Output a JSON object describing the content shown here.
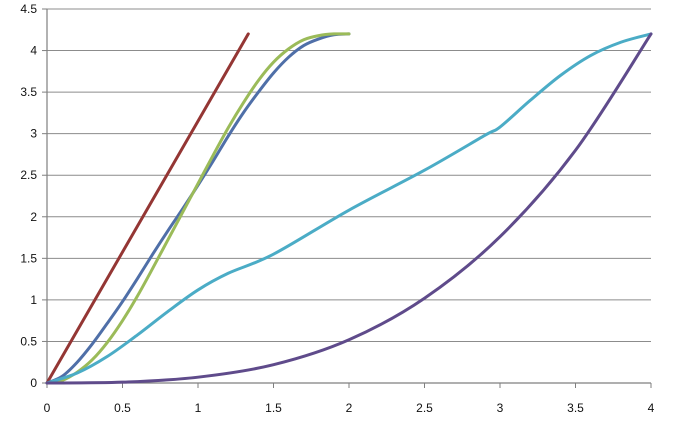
{
  "chart_data": {
    "type": "line",
    "title": "",
    "xlabel": "",
    "ylabel": "",
    "xlim": [
      0,
      4
    ],
    "ylim": [
      0,
      4.5
    ],
    "x_ticks": [
      0,
      0.5,
      1,
      1.5,
      2,
      2.5,
      3,
      3.5,
      4
    ],
    "y_ticks": [
      0,
      0.5,
      1,
      1.5,
      2,
      2.5,
      3,
      3.5,
      4,
      4.5
    ],
    "x_tick_labels": [
      "0",
      "0.5",
      "1",
      "1.5",
      "2",
      "2.5",
      "3",
      "3.5",
      "4"
    ],
    "y_tick_labels": [
      "0",
      "0.5",
      "1",
      "1.5",
      "2",
      "2.5",
      "3",
      "3.5",
      "4",
      "4.5"
    ],
    "grid": {
      "horizontal": true,
      "vertical": false
    },
    "legend": "none",
    "series": [
      {
        "color": "#943634",
        "points": [
          [
            0,
            0
          ],
          [
            1.333,
            4.2
          ]
        ]
      },
      {
        "color": "#4f6fa8",
        "points": [
          [
            0,
            0
          ],
          [
            0.1,
            0.08
          ],
          [
            0.2,
            0.25
          ],
          [
            0.3,
            0.47
          ],
          [
            0.4,
            0.72
          ],
          [
            0.5,
            0.98
          ],
          [
            0.6,
            1.26
          ],
          [
            0.7,
            1.55
          ],
          [
            0.8,
            1.83
          ],
          [
            0.9,
            2.1
          ],
          [
            1.0,
            2.38
          ],
          [
            1.1,
            2.67
          ],
          [
            1.2,
            2.97
          ],
          [
            1.3,
            3.25
          ],
          [
            1.4,
            3.5
          ],
          [
            1.5,
            3.73
          ],
          [
            1.6,
            3.92
          ],
          [
            1.7,
            4.06
          ],
          [
            1.8,
            4.14
          ],
          [
            1.9,
            4.19
          ],
          [
            2.0,
            4.2
          ]
        ]
      },
      {
        "color": "#9bbb59",
        "points": [
          [
            0,
            0
          ],
          [
            0.1,
            0.03
          ],
          [
            0.2,
            0.13
          ],
          [
            0.3,
            0.28
          ],
          [
            0.4,
            0.49
          ],
          [
            0.5,
            0.75
          ],
          [
            0.6,
            1.05
          ],
          [
            0.7,
            1.38
          ],
          [
            0.8,
            1.72
          ],
          [
            0.9,
            2.06
          ],
          [
            1.0,
            2.4
          ],
          [
            1.1,
            2.74
          ],
          [
            1.2,
            3.07
          ],
          [
            1.3,
            3.37
          ],
          [
            1.4,
            3.64
          ],
          [
            1.5,
            3.86
          ],
          [
            1.6,
            4.02
          ],
          [
            1.7,
            4.13
          ],
          [
            1.8,
            4.18
          ],
          [
            1.9,
            4.2
          ],
          [
            2.0,
            4.2
          ]
        ]
      },
      {
        "color": "#4bacc6",
        "points": [
          [
            0,
            0
          ],
          [
            0.2,
            0.12
          ],
          [
            0.4,
            0.32
          ],
          [
            0.6,
            0.58
          ],
          [
            0.8,
            0.86
          ],
          [
            1.0,
            1.12
          ],
          [
            1.2,
            1.32
          ],
          [
            1.5,
            1.55
          ],
          [
            2.0,
            2.08
          ],
          [
            2.5,
            2.56
          ],
          [
            2.9,
            2.98
          ],
          [
            3.0,
            3.08
          ],
          [
            3.2,
            3.4
          ],
          [
            3.4,
            3.7
          ],
          [
            3.6,
            3.94
          ],
          [
            3.8,
            4.1
          ],
          [
            4.0,
            4.2
          ]
        ]
      },
      {
        "color": "#5f4b8b",
        "points": [
          [
            0,
            0
          ],
          [
            0.5,
            0.01
          ],
          [
            1.0,
            0.07
          ],
          [
            1.5,
            0.22
          ],
          [
            2.0,
            0.52
          ],
          [
            2.5,
            1.02
          ],
          [
            3.0,
            1.76
          ],
          [
            3.5,
            2.8
          ],
          [
            4.0,
            4.2
          ]
        ]
      }
    ]
  }
}
